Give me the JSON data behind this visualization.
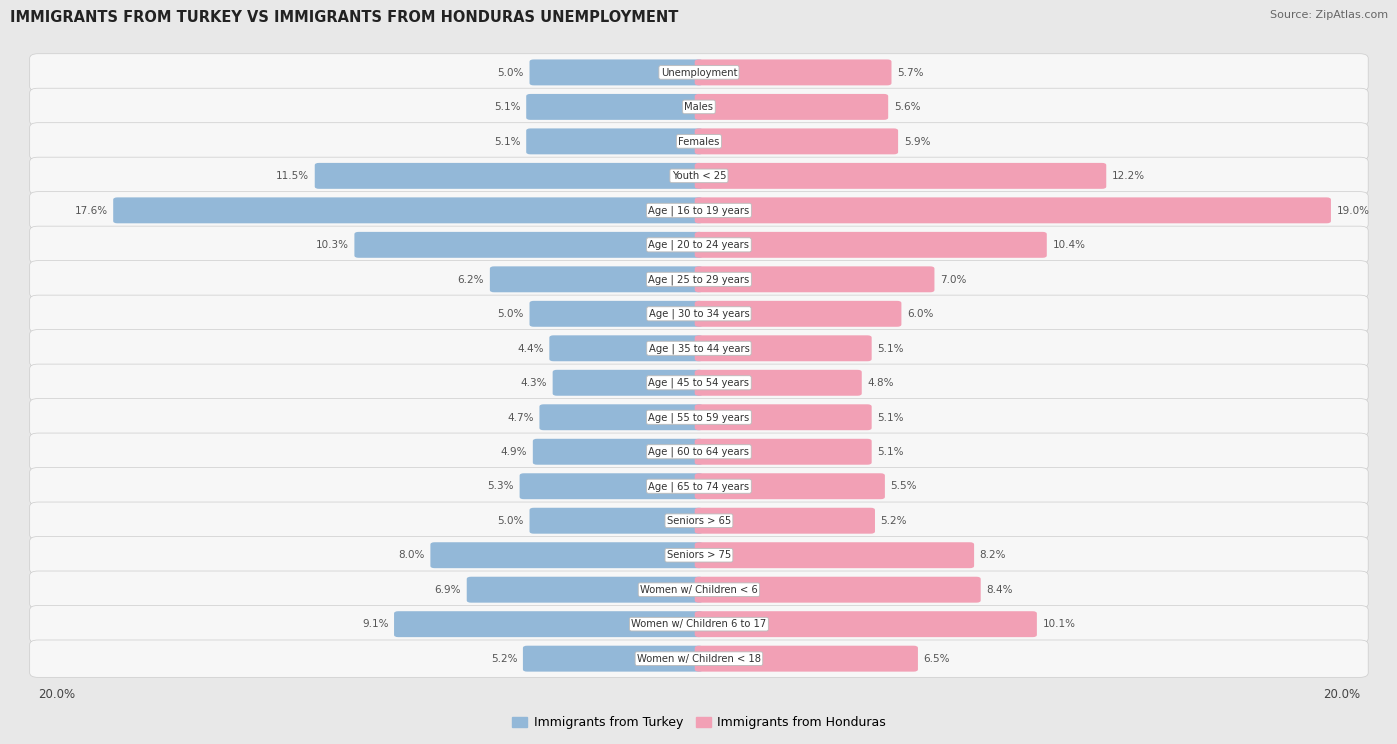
{
  "title": "IMMIGRANTS FROM TURKEY VS IMMIGRANTS FROM HONDURAS UNEMPLOYMENT",
  "source": "Source: ZipAtlas.com",
  "categories": [
    "Unemployment",
    "Males",
    "Females",
    "Youth < 25",
    "Age | 16 to 19 years",
    "Age | 20 to 24 years",
    "Age | 25 to 29 years",
    "Age | 30 to 34 years",
    "Age | 35 to 44 years",
    "Age | 45 to 54 years",
    "Age | 55 to 59 years",
    "Age | 60 to 64 years",
    "Age | 65 to 74 years",
    "Seniors > 65",
    "Seniors > 75",
    "Women w/ Children < 6",
    "Women w/ Children 6 to 17",
    "Women w/ Children < 18"
  ],
  "turkey_values": [
    5.0,
    5.1,
    5.1,
    11.5,
    17.6,
    10.3,
    6.2,
    5.0,
    4.4,
    4.3,
    4.7,
    4.9,
    5.3,
    5.0,
    8.0,
    6.9,
    9.1,
    5.2
  ],
  "honduras_values": [
    5.7,
    5.6,
    5.9,
    12.2,
    19.0,
    10.4,
    7.0,
    6.0,
    5.1,
    4.8,
    5.1,
    5.1,
    5.5,
    5.2,
    8.2,
    8.4,
    10.1,
    6.5
  ],
  "turkey_color": "#93b8d8",
  "honduras_color": "#f2a0b5",
  "background_color": "#e8e8e8",
  "row_bg_color": "#f7f7f7",
  "max_value": 20.0,
  "legend_turkey": "Immigrants from Turkey",
  "legend_honduras": "Immigrants from Honduras",
  "fig_width": 14.06,
  "fig_height": 7.57,
  "dpi": 100
}
